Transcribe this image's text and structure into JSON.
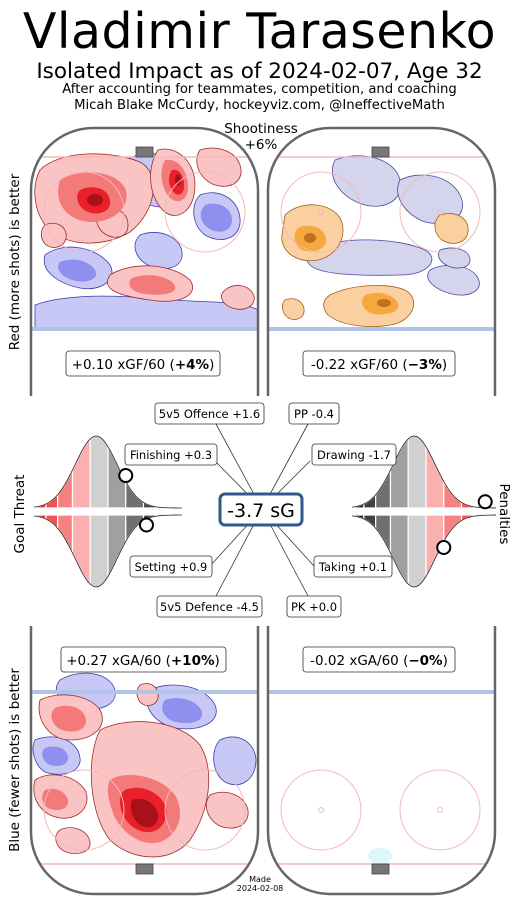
{
  "header": {
    "title": "Vladimir Tarasenko",
    "subtitle": "Isolated Impact as of 2024-02-07, Age 32",
    "note_line1": "After accounting for teammates, competition, and coaching",
    "note_line2": "Micah Blake McCurdy, hockeyviz.com, @IneffectiveMath"
  },
  "shootiness": {
    "label": "Shootiness",
    "value": "+6%"
  },
  "axis_labels": {
    "top_left": "Red (more shots) is better",
    "bottom_left": "Blue (fewer shots) is better",
    "mid_left": "Goal Threat",
    "mid_right": "Penalties"
  },
  "footer": {
    "made_label": "Made",
    "made_date": "2024-02-08"
  },
  "colors": {
    "rink_outline": "#666666",
    "red_line": "#f4b8b8",
    "blue_line": "#b0c4e8",
    "more_shots": "#e8202a",
    "fewer_shots": "#5050e0",
    "pp_more": "#f0a030",
    "center_box_border": "#2f5b8c"
  },
  "chart_data": {
    "type": "heatmap",
    "center_value": "-3.7 sG",
    "rate_labels": {
      "ev_offence": {
        "prefix": "+0.10 xGF/60 (",
        "pct": "+4%",
        "suffix": ")"
      },
      "pp_offence": {
        "prefix": "-0.22 xGF/60 (",
        "pct": "−3%",
        "suffix": ")"
      },
      "ev_defence": {
        "prefix": "+0.27 xGA/60 (",
        "pct": "+10%",
        "suffix": ")"
      },
      "pk_defence": {
        "prefix": "-0.02 xGA/60 (",
        "pct": "−0%",
        "suffix": ")"
      }
    },
    "components": {
      "ev_offence": "5v5 Offence +1.6",
      "pp": "PP -0.4",
      "finishing": "Finishing +0.3",
      "drawing": "Drawing -1.7",
      "setting": "Setting +0.9",
      "taking": "Taking +0.1",
      "ev_defence": "5v5 Defence -4.5",
      "pk": "PK +0.0"
    },
    "percentiles": {
      "finishing": 0.62,
      "setting": 0.76,
      "drawing": 0.1,
      "taking": 0.38
    }
  }
}
